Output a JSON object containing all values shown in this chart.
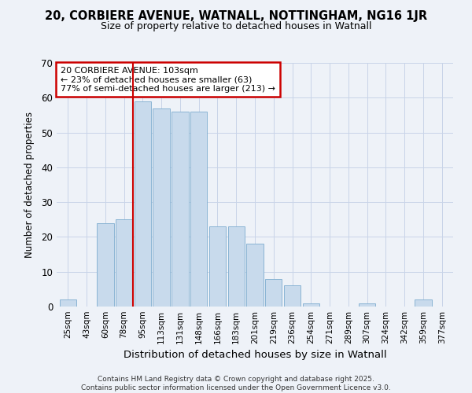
{
  "title1": "20, CORBIERE AVENUE, WATNALL, NOTTINGHAM, NG16 1JR",
  "title2": "Size of property relative to detached houses in Watnall",
  "xlabel": "Distribution of detached houses by size in Watnall",
  "ylabel": "Number of detached properties",
  "categories": [
    "25sqm",
    "43sqm",
    "60sqm",
    "78sqm",
    "95sqm",
    "113sqm",
    "131sqm",
    "148sqm",
    "166sqm",
    "183sqm",
    "201sqm",
    "219sqm",
    "236sqm",
    "254sqm",
    "271sqm",
    "289sqm",
    "307sqm",
    "324sqm",
    "342sqm",
    "359sqm",
    "377sqm"
  ],
  "values": [
    2,
    0,
    24,
    25,
    59,
    57,
    56,
    56,
    23,
    23,
    18,
    8,
    6,
    1,
    0,
    0,
    1,
    0,
    0,
    2,
    0
  ],
  "bar_color": "#c8daec",
  "bar_edge_color": "#8ab4d4",
  "grid_color": "#c8d4e8",
  "background_color": "#eef2f8",
  "red_line_x": 3.5,
  "annotation_line1": "20 CORBIERE AVENUE: 103sqm",
  "annotation_line2": "← 23% of detached houses are smaller (63)",
  "annotation_line3": "77% of semi-detached houses are larger (213) →",
  "annotation_box_color": "#ffffff",
  "annotation_box_edge": "#cc0000",
  "red_line_color": "#cc0000",
  "footer1": "Contains HM Land Registry data © Crown copyright and database right 2025.",
  "footer2": "Contains public sector information licensed under the Open Government Licence v3.0.",
  "ylim": [
    0,
    70
  ],
  "yticks": [
    0,
    10,
    20,
    30,
    40,
    50,
    60,
    70
  ]
}
